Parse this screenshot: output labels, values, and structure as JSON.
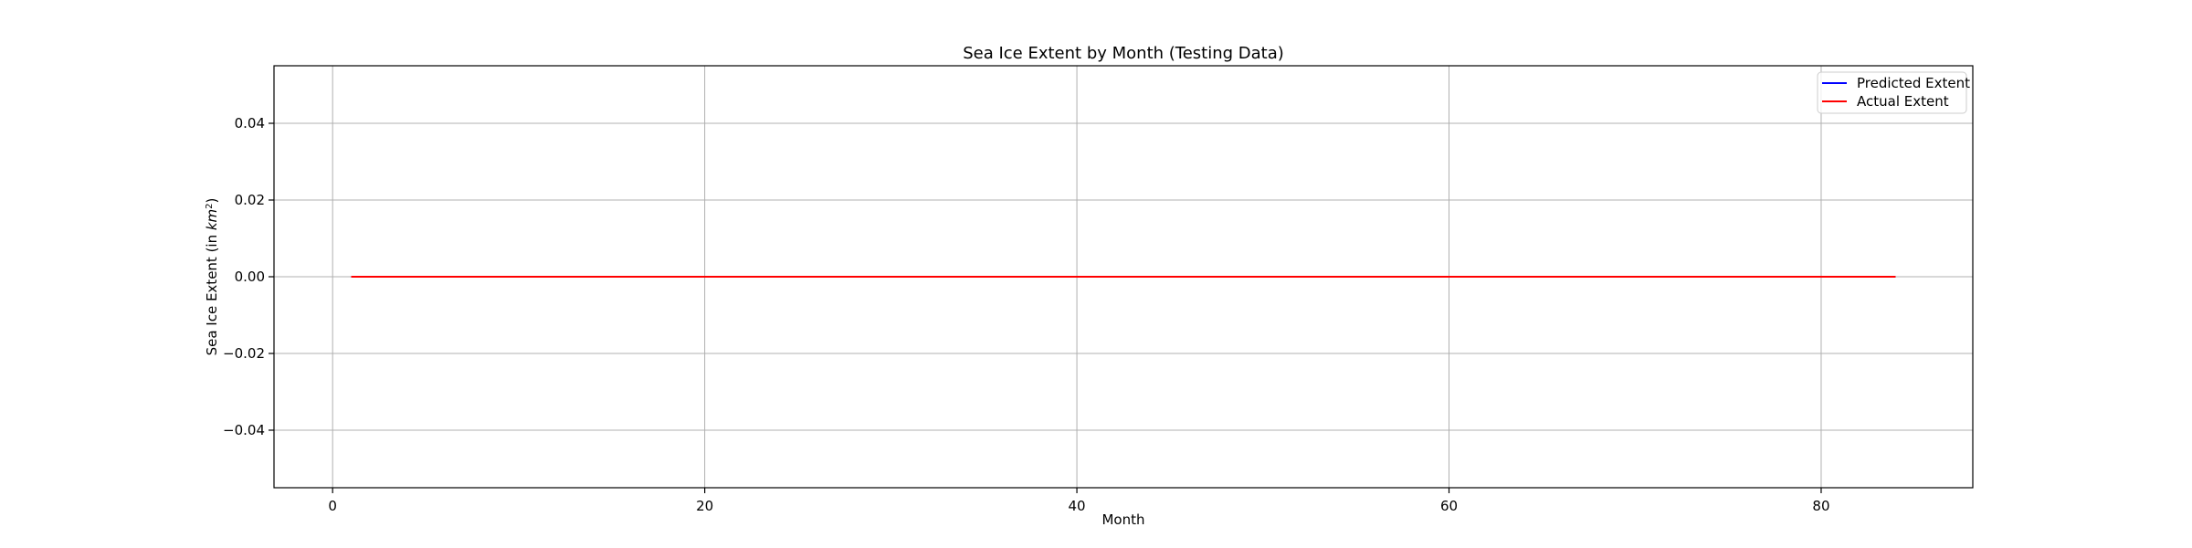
{
  "chart_data": {
    "type": "line",
    "title": "Sea Ice Extent by Month (Testing Data)",
    "xlabel": "Month",
    "ylabel_prefix": "Sea Ice Extent (in ",
    "ylabel_unit": "km",
    "ylabel_exp": "2",
    "ylabel_suffix": ")",
    "xlim": [
      -3.15,
      88.15
    ],
    "ylim": [
      -0.055,
      0.055
    ],
    "xticks": [
      0,
      20,
      40,
      60,
      80
    ],
    "xtick_labels": [
      "0",
      "20",
      "40",
      "60",
      "80"
    ],
    "yticks": [
      0.04,
      0.02,
      0.0,
      -0.02,
      -0.04
    ],
    "ytick_labels": [
      "0.04",
      "0.02",
      "0.00",
      "−0.02",
      "−0.04"
    ],
    "grid": true,
    "legend_position": "top-right",
    "series": [
      {
        "name": "Predicted Extent",
        "color": "#0000ff",
        "x": [
          1,
          84
        ],
        "y": [
          0,
          0
        ]
      },
      {
        "name": "Actual Extent",
        "color": "#ff0000",
        "x": [
          1,
          84
        ],
        "y": [
          0,
          0
        ]
      }
    ]
  }
}
